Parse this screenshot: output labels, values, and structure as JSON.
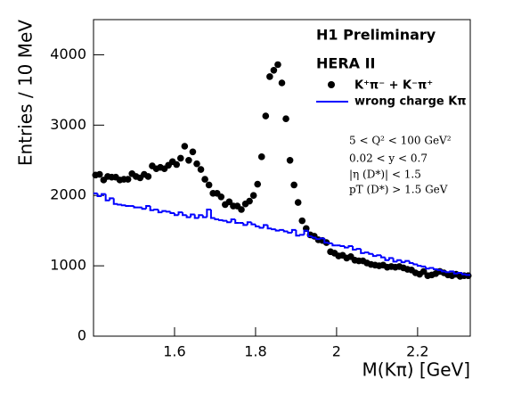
{
  "chart_data": {
    "type": "scatter",
    "title": "H1 Preliminary",
    "subtitle": "HERA II",
    "x_label": "M(Kπ) [GeV]",
    "y_label": "Entries / 10 MeV",
    "annotations": [
      "5 < Q² < 100 GeV²",
      "0.02 < y < 0.7",
      "|η (D*)| < 1.5",
      "pT (D*) > 1.5 GeV"
    ],
    "xlim": [
      1.4,
      2.33
    ],
    "ylim": [
      0,
      4500
    ],
    "xticks": [
      1.6,
      1.8,
      2,
      2.2
    ],
    "yticks": [
      0,
      1000,
      2000,
      3000,
      4000
    ],
    "series": [
      {
        "name": "K⁺π⁻ + K⁻π⁺",
        "color": "#000000",
        "x": [
          1.405,
          1.415,
          1.425,
          1.435,
          1.445,
          1.455,
          1.465,
          1.475,
          1.485,
          1.495,
          1.505,
          1.515,
          1.525,
          1.535,
          1.545,
          1.555,
          1.565,
          1.575,
          1.585,
          1.595,
          1.605,
          1.615,
          1.625,
          1.635,
          1.645,
          1.655,
          1.665,
          1.675,
          1.685,
          1.695,
          1.705,
          1.715,
          1.725,
          1.735,
          1.745,
          1.755,
          1.765,
          1.775,
          1.785,
          1.795,
          1.805,
          1.815,
          1.825,
          1.835,
          1.845,
          1.855,
          1.865,
          1.875,
          1.885,
          1.895,
          1.905,
          1.915,
          1.925,
          1.935,
          1.945,
          1.955,
          1.965,
          1.975,
          1.985,
          1.995,
          2.005,
          2.015,
          2.025,
          2.035,
          2.045,
          2.055,
          2.065,
          2.075,
          2.085,
          2.095,
          2.105,
          2.115,
          2.125,
          2.135,
          2.145,
          2.155,
          2.165,
          2.175,
          2.185,
          2.195,
          2.205,
          2.215,
          2.225,
          2.235,
          2.245,
          2.255,
          2.265,
          2.275,
          2.285,
          2.295,
          2.305,
          2.315,
          2.325
        ],
        "values": [
          2290,
          2300,
          2220,
          2270,
          2260,
          2260,
          2220,
          2230,
          2230,
          2310,
          2270,
          2250,
          2300,
          2270,
          2420,
          2380,
          2400,
          2380,
          2430,
          2480,
          2440,
          2530,
          2700,
          2500,
          2620,
          2450,
          2370,
          2230,
          2150,
          2030,
          2030,
          1980,
          1870,
          1910,
          1850,
          1850,
          1800,
          1880,
          1920,
          2000,
          2160,
          2550,
          3130,
          3690,
          3780,
          3860,
          3600,
          3090,
          2500,
          2150,
          1900,
          1640,
          1530,
          1440,
          1420,
          1370,
          1360,
          1330,
          1200,
          1180,
          1140,
          1150,
          1110,
          1130,
          1080,
          1070,
          1070,
          1040,
          1020,
          1010,
          1000,
          1010,
          980,
          990,
          980,
          990,
          970,
          950,
          940,
          900,
          880,
          920,
          860,
          870,
          890,
          920,
          900,
          870,
          860,
          880,
          850,
          860,
          860
        ]
      },
      {
        "name": "wrong charge Kπ",
        "color": "#0000ff",
        "bins": [
          1.4,
          1.41,
          1.42,
          1.43,
          1.44,
          1.45,
          1.46,
          1.47,
          1.48,
          1.49,
          1.5,
          1.51,
          1.52,
          1.53,
          1.54,
          1.55,
          1.56,
          1.57,
          1.58,
          1.59,
          1.6,
          1.61,
          1.62,
          1.63,
          1.64,
          1.65,
          1.66,
          1.67,
          1.68,
          1.69,
          1.7,
          1.71,
          1.72,
          1.73,
          1.74,
          1.75,
          1.76,
          1.77,
          1.78,
          1.79,
          1.8,
          1.81,
          1.82,
          1.83,
          1.84,
          1.85,
          1.86,
          1.87,
          1.88,
          1.89,
          1.9,
          1.91,
          1.92,
          1.93,
          1.94,
          1.95,
          1.96,
          1.97,
          1.98,
          1.99,
          2.0,
          2.01,
          2.02,
          2.03,
          2.04,
          2.05,
          2.06,
          2.07,
          2.08,
          2.09,
          2.1,
          2.11,
          2.12,
          2.13,
          2.14,
          2.15,
          2.16,
          2.17,
          2.18,
          2.19,
          2.2,
          2.21,
          2.22,
          2.23,
          2.24,
          2.25,
          2.26,
          2.27,
          2.28,
          2.29,
          2.3,
          2.31,
          2.32,
          2.33
        ],
        "values": [
          2030,
          1990,
          2020,
          1930,
          1960,
          1880,
          1870,
          1860,
          1850,
          1850,
          1830,
          1830,
          1810,
          1850,
          1790,
          1800,
          1760,
          1780,
          1770,
          1750,
          1720,
          1760,
          1720,
          1690,
          1730,
          1680,
          1720,
          1690,
          1800,
          1680,
          1660,
          1650,
          1640,
          1620,
          1660,
          1610,
          1610,
          1580,
          1620,
          1590,
          1560,
          1540,
          1580,
          1530,
          1520,
          1500,
          1510,
          1490,
          1470,
          1510,
          1430,
          1440,
          1500,
          1420,
          1400,
          1380,
          1390,
          1330,
          1320,
          1290,
          1290,
          1280,
          1260,
          1280,
          1230,
          1240,
          1180,
          1190,
          1170,
          1140,
          1150,
          1120,
          1080,
          1110,
          1060,
          1080,
          1050,
          1070,
          1040,
          1020,
          1000,
          990,
          960,
          970,
          950,
          940,
          920,
          910,
          920,
          890,
          900,
          880,
          870
        ]
      }
    ]
  }
}
